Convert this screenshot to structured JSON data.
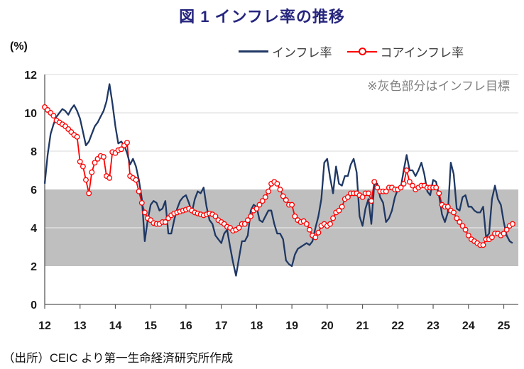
{
  "page": {
    "title": "図 1 インフレ率の推移"
  },
  "axis_unit_label": "(%)",
  "annotation": "※灰色部分はインフレ目標",
  "source_note": "（出所）CEIC より第一生命経済研究所作成",
  "legend": {
    "items": [
      {
        "label": "インフレ率",
        "color": "#1f3864",
        "marker": "line"
      },
      {
        "label": "コアインフレ率",
        "color": "#ff0000",
        "marker": "line-circle"
      }
    ]
  },
  "colors": {
    "title": "#26267f",
    "inflation_line": "#1f3864",
    "core_inflation_line": "#ff0000",
    "target_band": "#bfbfbf",
    "gridline": "#d9d9d9",
    "axis": "#595959",
    "tick_label": "#1a1a1a",
    "annotation_text": "#7f7f7f"
  },
  "chart_data": {
    "type": "line",
    "title": "図 1 インフレ率の推移",
    "unit": "%",
    "x_monthly_start": "2012-01",
    "x_monthly_end": "2025-04",
    "x_tick_labels": [
      "12",
      "13",
      "14",
      "15",
      "16",
      "17",
      "18",
      "19",
      "20",
      "21",
      "22",
      "23",
      "24",
      "25"
    ],
    "y_ticks": [
      0,
      2,
      4,
      6,
      8,
      10,
      12
    ],
    "ylim": [
      0,
      12
    ],
    "grid": "horizontal",
    "legend_position": "top",
    "target_band": {
      "from": 2,
      "to": 6,
      "label": "インフレ目標"
    },
    "series": [
      {
        "name": "インフレ率",
        "markers": false,
        "values": [
          6.3,
          7.8,
          8.9,
          9.4,
          9.8,
          10.0,
          10.2,
          10.1,
          9.9,
          10.2,
          10.4,
          10.1,
          9.7,
          9.0,
          8.3,
          8.5,
          8.9,
          9.3,
          9.5,
          9.8,
          10.1,
          10.6,
          11.5,
          10.5,
          9.3,
          8.4,
          8.5,
          8.3,
          7.9,
          7.3,
          7.6,
          7.2,
          6.5,
          5.5,
          3.3,
          4.4,
          5.2,
          5.4,
          5.3,
          4.9,
          5.0,
          5.4,
          3.7,
          3.7,
          4.4,
          5.0,
          5.4,
          5.6,
          5.7,
          5.3,
          4.8,
          5.5,
          5.9,
          5.8,
          6.1,
          5.1,
          4.4,
          4.2,
          3.6,
          3.4,
          3.2,
          3.7,
          3.9,
          3.0,
          2.2,
          1.5,
          2.4,
          3.3,
          3.3,
          3.6,
          4.9,
          5.2,
          5.1,
          4.4,
          4.3,
          4.6,
          4.9,
          4.9,
          4.2,
          3.7,
          3.7,
          3.4,
          2.3,
          2.1,
          2.0,
          2.6,
          2.9,
          3.0,
          3.1,
          3.2,
          3.1,
          3.3,
          4.0,
          4.6,
          5.5,
          7.4,
          7.6,
          6.6,
          5.8,
          7.2,
          6.3,
          6.2,
          6.7,
          6.7,
          7.3,
          7.6,
          6.9,
          4.6,
          4.1,
          5.0,
          5.5,
          4.2,
          6.3,
          6.3,
          5.6,
          5.3,
          4.3,
          4.5,
          4.9,
          5.6,
          6.0,
          6.1,
          7.0,
          7.8,
          7.0,
          7.0,
          6.7,
          7.0,
          7.4,
          6.8,
          5.9,
          5.7,
          6.5,
          6.4,
          5.7,
          4.7,
          4.3,
          4.8,
          7.4,
          6.8,
          5.0,
          4.9,
          5.6,
          5.7,
          5.1,
          5.1,
          4.9,
          4.8,
          4.8,
          5.1,
          3.5,
          3.7,
          5.5,
          6.2,
          5.5,
          5.2,
          4.3,
          3.6,
          3.3,
          3.2
        ]
      },
      {
        "name": "コアインフレ率",
        "markers": true,
        "values": [
          10.3,
          10.15,
          10.0,
          9.85,
          9.6,
          9.5,
          9.4,
          9.3,
          9.15,
          9.0,
          8.85,
          8.75,
          7.45,
          7.2,
          6.5,
          5.8,
          6.9,
          7.4,
          7.6,
          7.75,
          7.7,
          6.7,
          6.6,
          7.95,
          7.9,
          8.05,
          8.1,
          8.3,
          8.45,
          6.7,
          6.6,
          6.5,
          5.9,
          5.3,
          4.8,
          4.5,
          4.4,
          4.25,
          4.2,
          4.2,
          4.3,
          4.3,
          4.5,
          4.65,
          4.75,
          4.8,
          4.85,
          4.9,
          4.95,
          5.0,
          4.9,
          4.8,
          4.75,
          4.7,
          4.65,
          4.7,
          4.75,
          4.7,
          4.6,
          4.4,
          4.3,
          4.2,
          4.05,
          4.0,
          3.85,
          3.9,
          4.0,
          4.2,
          4.2,
          4.4,
          4.6,
          4.9,
          5.0,
          5.2,
          5.4,
          5.6,
          5.9,
          6.3,
          6.4,
          6.3,
          6.0,
          5.65,
          5.45,
          5.2,
          5.2,
          4.6,
          4.4,
          4.3,
          4.35,
          4.2,
          3.9,
          3.6,
          3.5,
          3.75,
          4.1,
          4.2,
          4.1,
          4.2,
          4.5,
          4.8,
          4.9,
          5.1,
          5.5,
          5.6,
          5.8,
          5.8,
          5.8,
          5.7,
          5.6,
          5.8,
          5.8,
          5.4,
          6.4,
          6.1,
          5.9,
          5.9,
          5.9,
          6.1,
          6.1,
          6.0,
          6.0,
          6.1,
          6.3,
          7.0,
          6.4,
          6.2,
          6.0,
          6.1,
          6.2,
          6.2,
          6.1,
          6.1,
          6.1,
          6.1,
          5.8,
          5.2,
          5.1,
          5.1,
          4.9,
          4.8,
          4.5,
          4.3,
          4.1,
          3.9,
          3.6,
          3.4,
          3.3,
          3.2,
          3.1,
          3.1,
          3.4,
          3.4,
          3.5,
          3.7,
          3.7,
          3.6,
          3.7,
          3.9,
          4.1,
          4.2
        ]
      }
    ]
  }
}
